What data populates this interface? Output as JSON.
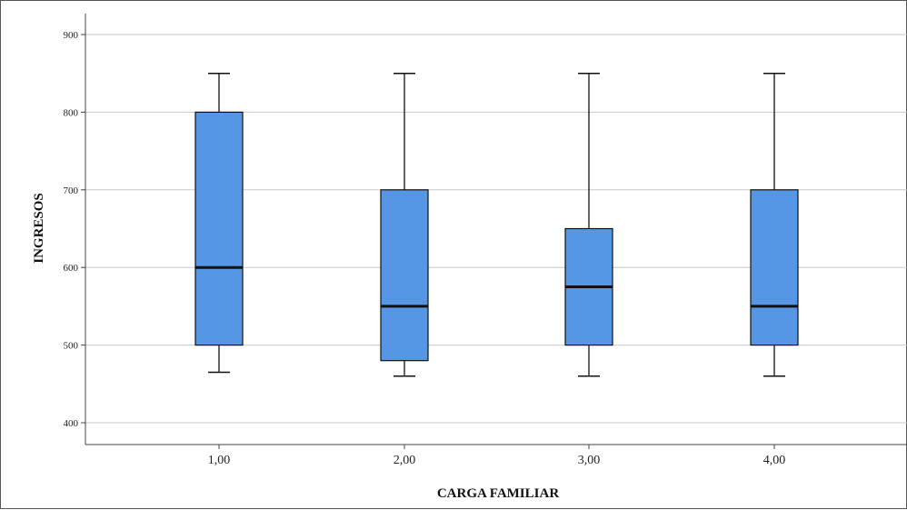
{
  "chart_data": {
    "type": "box",
    "xlabel": "CARGA FAMILIAR",
    "ylabel": "INGRESOS",
    "ylim": [
      375,
      925
    ],
    "yticks": [
      "400",
      "500",
      "600",
      "700",
      "800",
      "900"
    ],
    "ytick_values": [
      400,
      500,
      600,
      700,
      800,
      900
    ],
    "categories": [
      "1,00",
      "2,00",
      "3,00",
      "4,00"
    ],
    "boxes": [
      {
        "category": "1,00",
        "min": 465,
        "q1": 500,
        "median": 600,
        "q3": 800,
        "max": 850
      },
      {
        "category": "2,00",
        "min": 460,
        "q1": 480,
        "median": 550,
        "q3": 700,
        "max": 850
      },
      {
        "category": "3,00",
        "min": 460,
        "q1": 500,
        "median": 575,
        "q3": 650,
        "max": 850
      },
      {
        "category": "4,00",
        "min": 460,
        "q1": 500,
        "median": 550,
        "q3": 700,
        "max": 850
      }
    ],
    "grid": true,
    "colors": {
      "box_fill": "#5597e4",
      "grid": "#c8c8c8",
      "stroke": "#111111"
    }
  }
}
